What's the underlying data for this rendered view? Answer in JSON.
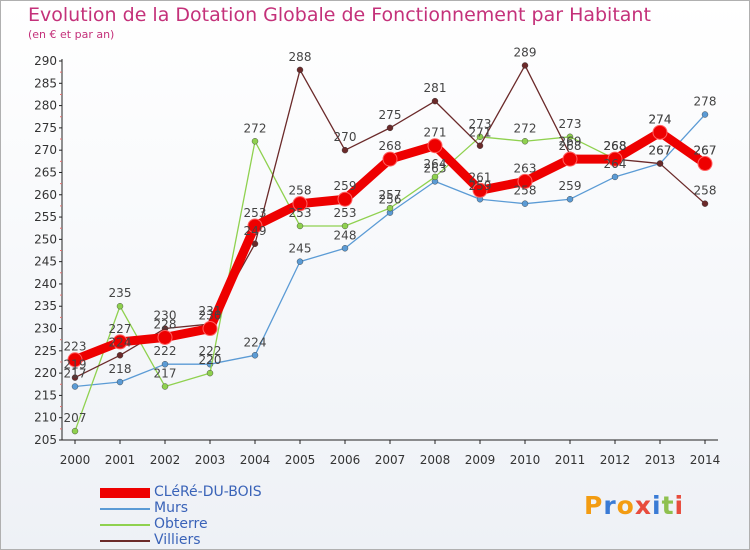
{
  "chart_data": {
    "type": "line",
    "title": "Evolution de la Dotation Globale de Fonctionnement par Habitant",
    "subtitle": "(en € et par an)",
    "x": [
      "2000",
      "2001",
      "2002",
      "2003",
      "2004",
      "2005",
      "2006",
      "2007",
      "2008",
      "2009",
      "2010",
      "2011",
      "2012",
      "2013",
      "2014"
    ],
    "ylim": [
      205,
      290
    ],
    "yticks": [
      205,
      210,
      215,
      220,
      225,
      230,
      235,
      240,
      245,
      250,
      255,
      260,
      265,
      270,
      275,
      280,
      285,
      290
    ],
    "grid": false,
    "legend_position": "bottom-left",
    "series": [
      {
        "name": "CLéRé-DU-BOIS",
        "color": "#ee0000",
        "values": [
          223,
          227,
          228,
          230,
          253,
          258,
          259,
          268,
          271,
          261,
          263,
          268,
          268,
          274,
          267
        ]
      },
      {
        "name": "Murs",
        "color": "#5b9bd5",
        "values": [
          217,
          218,
          222,
          222,
          224,
          245,
          248,
          256,
          263,
          259,
          258,
          259,
          264,
          267,
          278
        ]
      },
      {
        "name": "Obterre",
        "color": "#8fd14f",
        "values": [
          207,
          235,
          217,
          220,
          272,
          253,
          253,
          257,
          264,
          273,
          272,
          273,
          268,
          274,
          267
        ]
      },
      {
        "name": "Villiers",
        "color": "#6b2a2a",
        "values": [
          219,
          224,
          230,
          231,
          249,
          288,
          270,
          275,
          281,
          271,
          289,
          269,
          268,
          267,
          258
        ]
      }
    ]
  },
  "logo": {
    "text": "Proxiti",
    "letters": [
      "P",
      "r",
      "o",
      "x",
      "i",
      "t",
      "i"
    ],
    "colors": [
      "#f39c12",
      "#3a7bd5",
      "#f39c12",
      "#e84c3d",
      "#3a7bd5",
      "#8fc04f",
      "#e84c3d"
    ]
  }
}
